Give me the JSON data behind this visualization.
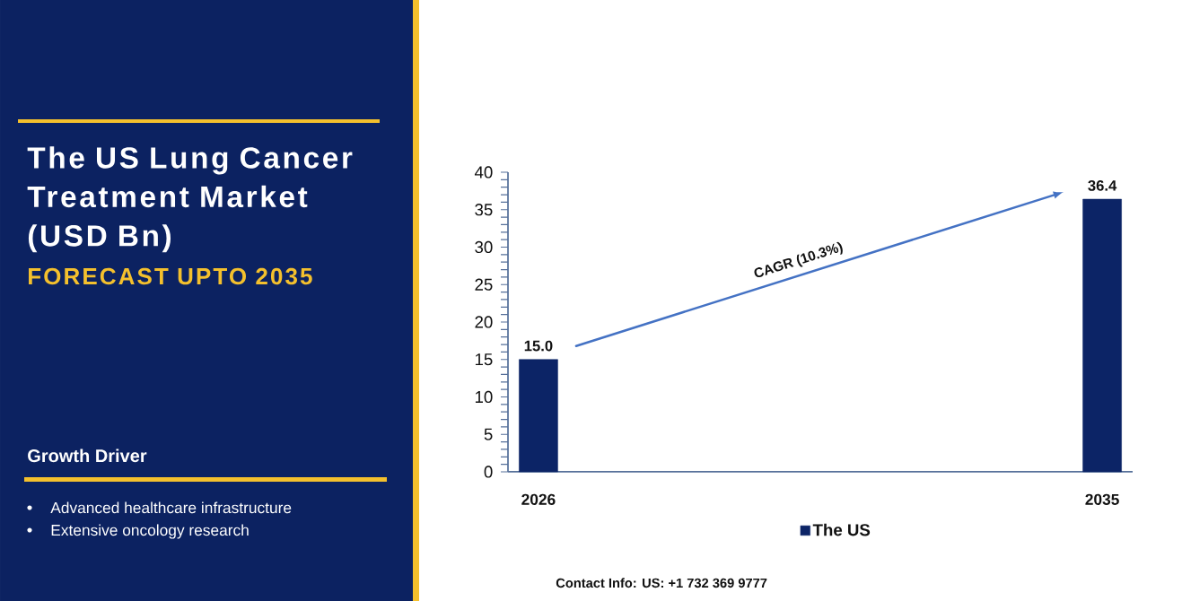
{
  "chart_data": [
    {
      "type": "other",
      "title": "The US Lung Cancer Treatment Market (USD Bn)",
      "subtitle": "FORECAST UPTO 2035",
      "annotations": [
        "Growth Driver",
        "Advanced healthcare infrastructure",
        "Extensive oncology research"
      ]
    },
    {
      "type": "bar",
      "categories": [
        "2026",
        "2035"
      ],
      "series": [
        {
          "name": "The US",
          "color": "#0c2466",
          "values": [
            15.0,
            36.4
          ],
          "value_labels": [
            "15.0",
            "36.4"
          ]
        }
      ],
      "ylim": [
        0,
        40
      ],
      "yticks": [
        0,
        5,
        10,
        15,
        20,
        25,
        30,
        35,
        40
      ],
      "legend": "bottom",
      "annotations": [
        "CAGR (10.3%)",
        "Contact Info: US: +1 732 369 9777"
      ]
    }
  ]
}
